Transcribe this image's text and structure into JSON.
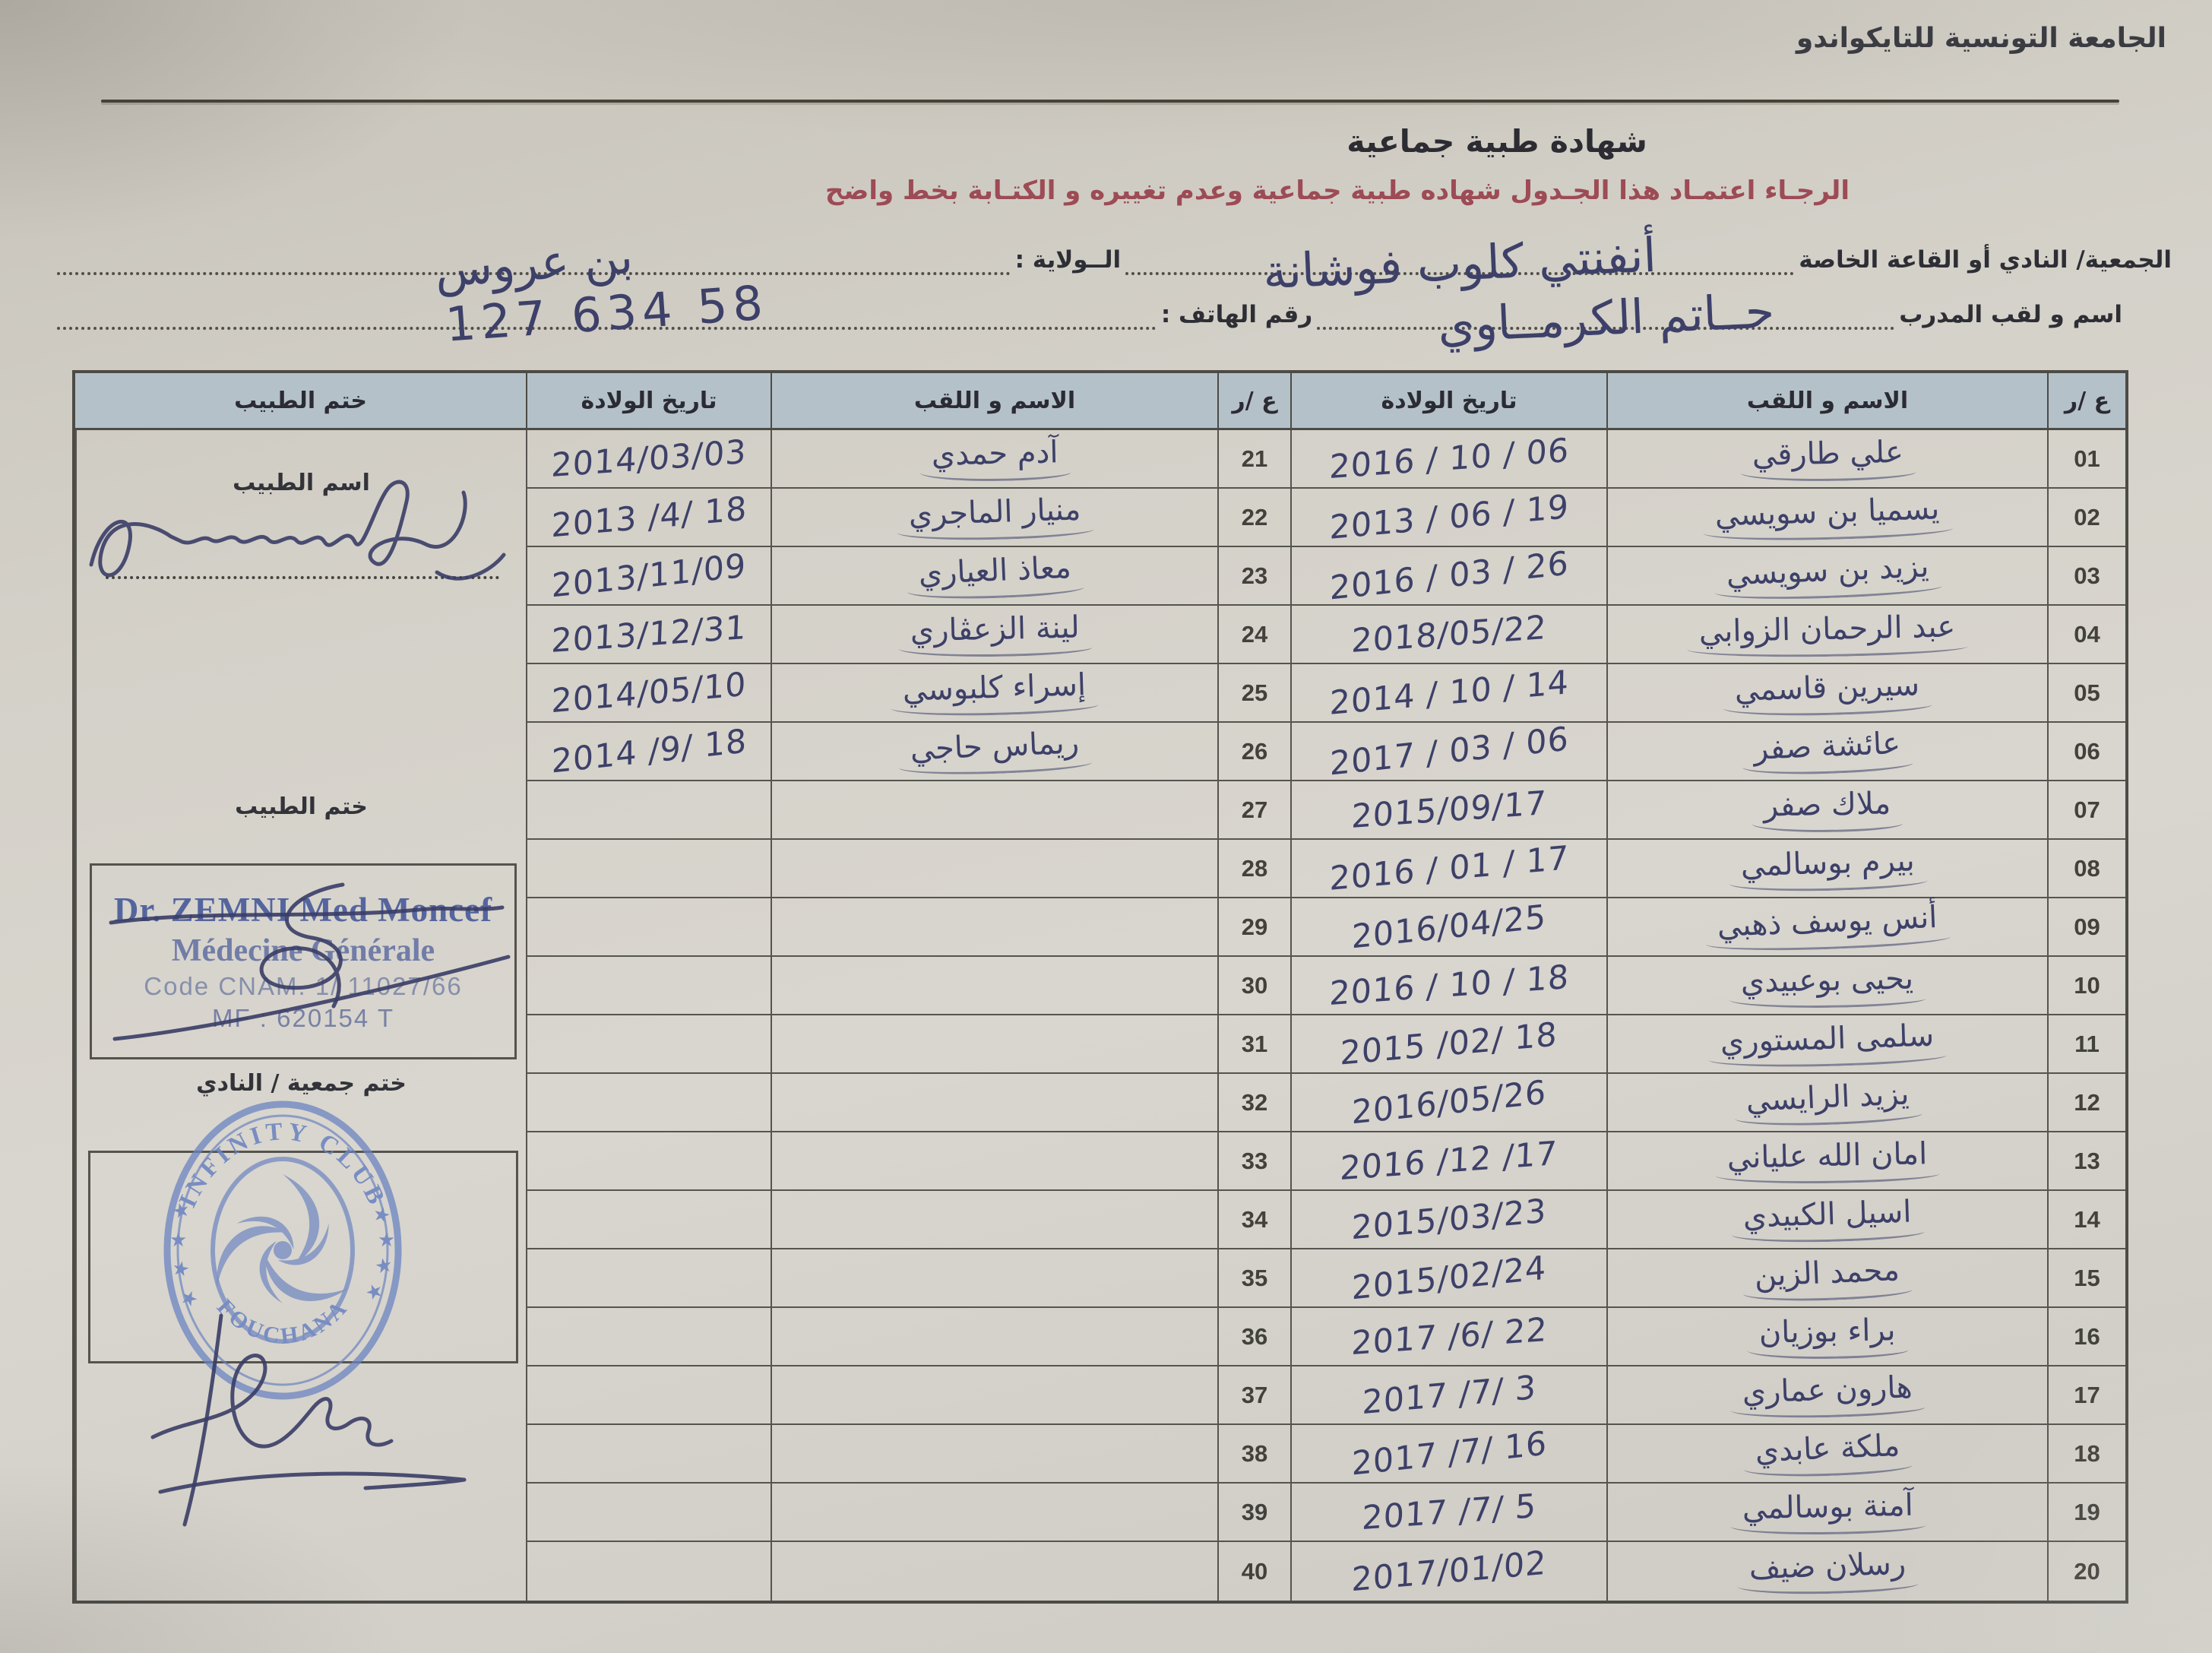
{
  "page": {
    "org_title": "الجامعة التونسية للتايكواندو",
    "doc_title": "شهادة طبية جماعية",
    "notice": "الرجـاء اعتمـاد هذا الجـدول  شهاده طبية جماعية وعدم تغييره و الكتـابة بخط واضح"
  },
  "form": {
    "club_label": "الجمعية/ النادي أو القاعة الخاصة",
    "club_value": "أنفنتي كلوب فوشانة",
    "wilaya_label": "الــولاية :",
    "wilaya_value": "بن عروس",
    "coach_label": "اسم و لقب المدرب",
    "coach_value": "حــاتم الكرمــاوي",
    "phone_label": "رقم الهاتف :",
    "phone_value": "58 634 127"
  },
  "table": {
    "headers": {
      "doctor_stamp": "ختم الطبيب",
      "birth_date_left": "تاريخ الولادة",
      "name_left": "الاسم و اللقب",
      "num_left": "ع /ر",
      "birth_date_right": "تاريخ الولادة",
      "name_right": "الاسم و اللقب",
      "num_right": "ع /ر"
    },
    "rows": [
      {
        "num_r": "01",
        "name_r": "علي طارقي",
        "date_r": "2016 / 10 / 06",
        "num_l": "21",
        "name_l": "آدم حمدي",
        "date_l": "2014/03/03"
      },
      {
        "num_r": "02",
        "name_r": "يسميا بن سويسي",
        "date_r": "2013 / 06 / 19",
        "num_l": "22",
        "name_l": "منيار الماجري",
        "date_l": "2013 /4/ 18"
      },
      {
        "num_r": "03",
        "name_r": "يزيد بن سويسي",
        "date_r": "2016 / 03 / 26",
        "num_l": "23",
        "name_l": "معاذ العياري",
        "date_l": "2013/11/09"
      },
      {
        "num_r": "04",
        "name_r": "عبد الرحمان الزوابي",
        "date_r": "2018/05/22",
        "num_l": "24",
        "name_l": "لينة الزعڤاري",
        "date_l": "2013/12/31"
      },
      {
        "num_r": "05",
        "name_r": "سيرين قاسمي",
        "date_r": "2014 / 10 / 14",
        "num_l": "25",
        "name_l": "إسراء كلبوسي",
        "date_l": "2014/05/10"
      },
      {
        "num_r": "06",
        "name_r": "عائشة صفر",
        "date_r": "2017 / 03 / 06",
        "num_l": "26",
        "name_l": "ريماس حاجي",
        "date_l": "2014 /9/ 18"
      },
      {
        "num_r": "07",
        "name_r": "ملاك صفر",
        "date_r": "2015/09/17",
        "num_l": "27",
        "name_l": "",
        "date_l": ""
      },
      {
        "num_r": "08",
        "name_r": "بيرم بوسالمي",
        "date_r": "2016 / 01 / 17",
        "num_l": "28",
        "name_l": "",
        "date_l": ""
      },
      {
        "num_r": "09",
        "name_r": "أنس يوسف ذهبي",
        "date_r": "2016/04/25",
        "num_l": "29",
        "name_l": "",
        "date_l": ""
      },
      {
        "num_r": "10",
        "name_r": "يحيى بوعبيدي",
        "date_r": "2016 / 10 / 18",
        "num_l": "30",
        "name_l": "",
        "date_l": ""
      },
      {
        "num_r": "11",
        "name_r": "سلمى المستوري",
        "date_r": "2015 /02/ 18",
        "num_l": "31",
        "name_l": "",
        "date_l": ""
      },
      {
        "num_r": "12",
        "name_r": "يزيد الرايسي",
        "date_r": "2016/05/26",
        "num_l": "32",
        "name_l": "",
        "date_l": ""
      },
      {
        "num_r": "13",
        "name_r": "امان الله علياني",
        "date_r": "2016 /12 /17",
        "num_l": "33",
        "name_l": "",
        "date_l": ""
      },
      {
        "num_r": "14",
        "name_r": "اسيل الكبيدي",
        "date_r": "2015/03/23",
        "num_l": "34",
        "name_l": "",
        "date_l": ""
      },
      {
        "num_r": "15",
        "name_r": "محمد الزين",
        "date_r": "2015/02/24",
        "num_l": "35",
        "name_l": "",
        "date_l": ""
      },
      {
        "num_r": "16",
        "name_r": "براء بوزيان",
        "date_r": "2017 /6/ 22",
        "num_l": "36",
        "name_l": "",
        "date_l": ""
      },
      {
        "num_r": "17",
        "name_r": "هارون عماري",
        "date_r": "2017 /7/ 3",
        "num_l": "37",
        "name_l": "",
        "date_l": ""
      },
      {
        "num_r": "18",
        "name_r": "ملكة عابدي",
        "date_r": "2017 /7/ 16",
        "num_l": "38",
        "name_l": "",
        "date_l": ""
      },
      {
        "num_r": "19",
        "name_r": "آمنة بوسالمي",
        "date_r": "2017 /7/ 5",
        "num_l": "39",
        "name_l": "",
        "date_l": ""
      },
      {
        "num_r": "20",
        "name_r": "رسلان ضيف",
        "date_r": "2017/01/02",
        "num_l": "40",
        "name_l": "",
        "date_l": ""
      }
    ]
  },
  "stamp_column": {
    "doctor_name_label": "اسم الطبيب",
    "doctor_stamp_label": "ختم الطبيب",
    "club_stamp_label": "ختم جمعية / النادي",
    "doctor_stamp": {
      "line1": "Dr. ZEMNI Med Moncef",
      "line2": "Médecine Générale",
      "line3": "Code CNAM. 1/ 11027/66",
      "line4": "MF : 620154 T"
    },
    "club_stamp": {
      "top": "INFINITY CLUB",
      "bottom": "FOUCHANA",
      "star": "★"
    }
  },
  "colors": {
    "paper": "#d3d0c9",
    "header_bg": "#b5c1c9",
    "ink": "#3d4068",
    "stamp_blue": "#6b84c1",
    "notice_red": "#9d4b55",
    "grid_line": "#56544f"
  }
}
